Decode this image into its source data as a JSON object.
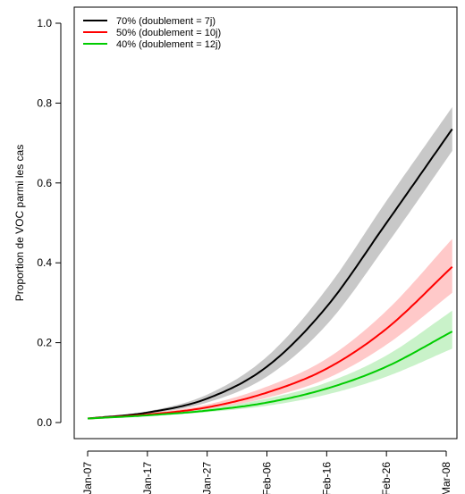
{
  "chart_data": {
    "type": "line",
    "title": "",
    "xlabel": "",
    "ylabel": "Proportion de VOC parmi les cas",
    "xlim": [
      "2021-01-07",
      "2021-03-09"
    ],
    "ylim": [
      0,
      1.0
    ],
    "y_ticks": [
      0.0,
      0.2,
      0.4,
      0.6,
      0.8,
      1.0
    ],
    "y_tick_labels": [
      "0.0",
      "0.2",
      "0.4",
      "0.6",
      "0.8",
      "1.0"
    ],
    "x_ticks": [
      "2021-01-07",
      "2021-01-17",
      "2021-01-27",
      "2021-02-06",
      "2021-02-16",
      "2021-02-26",
      "2021-03-08"
    ],
    "x_tick_labels": [
      "Jan-07",
      "Jan-17",
      "Jan-27",
      "Feb-06",
      "Feb-16",
      "Feb-26",
      "Mar-08"
    ],
    "grid": false,
    "legend_position": "top-left",
    "series": [
      {
        "name": "70% (doublement = 7j)",
        "color": "#000000",
        "band_color": "#bebebe",
        "x": [
          "2021-01-07",
          "2021-01-17",
          "2021-01-27",
          "2021-02-06",
          "2021-02-16",
          "2021-02-26",
          "2021-03-09"
        ],
        "y": [
          0.01,
          0.025,
          0.06,
          0.14,
          0.29,
          0.5,
          0.735
        ],
        "lower": [
          0.01,
          0.022,
          0.05,
          0.115,
          0.245,
          0.445,
          0.68
        ],
        "upper": [
          0.01,
          0.028,
          0.07,
          0.165,
          0.335,
          0.555,
          0.79
        ]
      },
      {
        "name": "50% (doublement = 10j)",
        "color": "#ff0000",
        "band_color": "#ffc0c0",
        "x": [
          "2021-01-07",
          "2021-01-17",
          "2021-01-27",
          "2021-02-06",
          "2021-02-16",
          "2021-02-26",
          "2021-03-09"
        ],
        "y": [
          0.01,
          0.02,
          0.038,
          0.075,
          0.135,
          0.235,
          0.39
        ],
        "lower": [
          0.01,
          0.018,
          0.033,
          0.062,
          0.11,
          0.195,
          0.325
        ],
        "upper": [
          0.01,
          0.023,
          0.045,
          0.09,
          0.16,
          0.28,
          0.46
        ]
      },
      {
        "name": "40% (doublement = 12j)",
        "color": "#00cc00",
        "band_color": "#c0f0c0",
        "x": [
          "2021-01-07",
          "2021-01-17",
          "2021-01-27",
          "2021-02-06",
          "2021-02-16",
          "2021-02-26",
          "2021-03-09"
        ],
        "y": [
          0.01,
          0.018,
          0.03,
          0.05,
          0.085,
          0.14,
          0.228
        ],
        "lower": [
          0.01,
          0.016,
          0.026,
          0.042,
          0.07,
          0.115,
          0.185
        ],
        "upper": [
          0.01,
          0.02,
          0.035,
          0.06,
          0.1,
          0.168,
          0.28
        ]
      }
    ]
  }
}
